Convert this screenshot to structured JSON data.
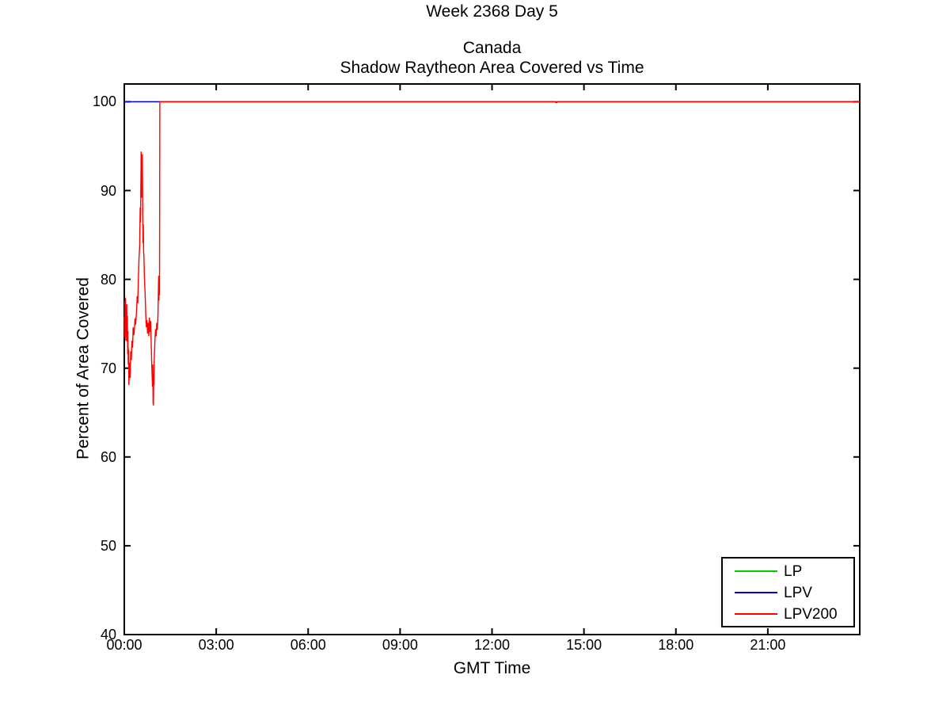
{
  "figure": {
    "background": "#FFFFFF"
  },
  "chart_data": {
    "type": "line",
    "suptitle": "Week 2368 Day 5",
    "title_lines": [
      "Canada",
      "Shadow Raytheon Area Covered vs Time"
    ],
    "xlabel": "GMT Time",
    "ylabel": "Percent of Area Covered",
    "axis_color": "#000000",
    "text_color": "#000000",
    "grid": false,
    "xlim_hours": [
      0,
      24
    ],
    "ylim": [
      40,
      102
    ],
    "x_ticks": [
      {
        "hour": 0,
        "label": "00:00"
      },
      {
        "hour": 3,
        "label": "03:00"
      },
      {
        "hour": 6,
        "label": "06:00"
      },
      {
        "hour": 9,
        "label": "09:00"
      },
      {
        "hour": 12,
        "label": "12:00"
      },
      {
        "hour": 15,
        "label": "15:00"
      },
      {
        "hour": 18,
        "label": "18:00"
      },
      {
        "hour": 21,
        "label": "21:00"
      }
    ],
    "y_ticks": [
      {
        "value": 100,
        "label": "100"
      },
      {
        "value": 90,
        "label": "90"
      },
      {
        "value": 80,
        "label": "80"
      },
      {
        "value": 70,
        "label": "70"
      },
      {
        "value": 60,
        "label": "60"
      },
      {
        "value": 50,
        "label": "50"
      },
      {
        "value": 40,
        "label": "40"
      }
    ],
    "legend": {
      "position": "bottom-right",
      "entries": [
        {
          "name": "LP",
          "color": "#00CC00"
        },
        {
          "name": "LPV",
          "color": "#0000EE"
        },
        {
          "name": "LPV200",
          "color": "#FF0000"
        }
      ]
    },
    "series": [
      {
        "name": "LP",
        "color": "#00CC00",
        "points": [
          [
            0,
            100
          ],
          [
            24,
            100
          ]
        ]
      },
      {
        "name": "LPV",
        "color": "#0000EE",
        "points": [
          [
            0,
            100
          ],
          [
            14.05,
            100
          ],
          [
            14.1,
            99.9
          ],
          [
            14.15,
            100
          ],
          [
            24,
            100
          ]
        ]
      },
      {
        "name": "LPV200",
        "color": "#FF0000",
        "points": [
          [
            0.0,
            75.7
          ],
          [
            0.01,
            73.4
          ],
          [
            0.02,
            77.6
          ],
          [
            0.03,
            74.0
          ],
          [
            0.04,
            77.9
          ],
          [
            0.05,
            73.1
          ],
          [
            0.06,
            76.3
          ],
          [
            0.07,
            74.6
          ],
          [
            0.08,
            77.2
          ],
          [
            0.09,
            73.0
          ],
          [
            0.1,
            75.9
          ],
          [
            0.11,
            71.6
          ],
          [
            0.12,
            74.2
          ],
          [
            0.13,
            70.4
          ],
          [
            0.14,
            72.1
          ],
          [
            0.15,
            68.1
          ],
          [
            0.17,
            70.6
          ],
          [
            0.19,
            68.9
          ],
          [
            0.21,
            71.9
          ],
          [
            0.23,
            70.9
          ],
          [
            0.25,
            73.1
          ],
          [
            0.27,
            72.3
          ],
          [
            0.29,
            74.6
          ],
          [
            0.31,
            73.7
          ],
          [
            0.33,
            74.3
          ],
          [
            0.35,
            75.6
          ],
          [
            0.37,
            74.9
          ],
          [
            0.4,
            76.4
          ],
          [
            0.42,
            78.1
          ],
          [
            0.44,
            77.3
          ],
          [
            0.46,
            79.9
          ],
          [
            0.48,
            82.4
          ],
          [
            0.5,
            83.6
          ],
          [
            0.52,
            88.1
          ],
          [
            0.53,
            86.4
          ],
          [
            0.55,
            94.4
          ],
          [
            0.56,
            89.2
          ],
          [
            0.57,
            93.9
          ],
          [
            0.58,
            91.1
          ],
          [
            0.59,
            94.1
          ],
          [
            0.6,
            88.6
          ],
          [
            0.61,
            84.1
          ],
          [
            0.62,
            86.2
          ],
          [
            0.63,
            83.1
          ],
          [
            0.64,
            82.6
          ],
          [
            0.66,
            80.1
          ],
          [
            0.68,
            78.4
          ],
          [
            0.7,
            76.1
          ],
          [
            0.72,
            74.6
          ],
          [
            0.74,
            75.4
          ],
          [
            0.76,
            73.9
          ],
          [
            0.78,
            75.1
          ],
          [
            0.8,
            73.6
          ],
          [
            0.82,
            75.7
          ],
          [
            0.84,
            74.1
          ],
          [
            0.86,
            75.3
          ],
          [
            0.88,
            72.4
          ],
          [
            0.9,
            70.1
          ],
          [
            0.92,
            67.9
          ],
          [
            0.93,
            70.4
          ],
          [
            0.94,
            66.1
          ],
          [
            0.95,
            65.8
          ],
          [
            0.96,
            69.4
          ],
          [
            0.97,
            68.1
          ],
          [
            0.98,
            71.1
          ],
          [
            1.0,
            73.1
          ],
          [
            1.02,
            74.4
          ],
          [
            1.04,
            73.6
          ],
          [
            1.06,
            75.1
          ],
          [
            1.08,
            74.3
          ],
          [
            1.1,
            76.2
          ],
          [
            1.12,
            80.4
          ],
          [
            1.13,
            77.6
          ],
          [
            1.14,
            79.1
          ],
          [
            1.15,
            78.2
          ],
          [
            1.16,
            100
          ],
          [
            24,
            100
          ]
        ]
      }
    ]
  }
}
